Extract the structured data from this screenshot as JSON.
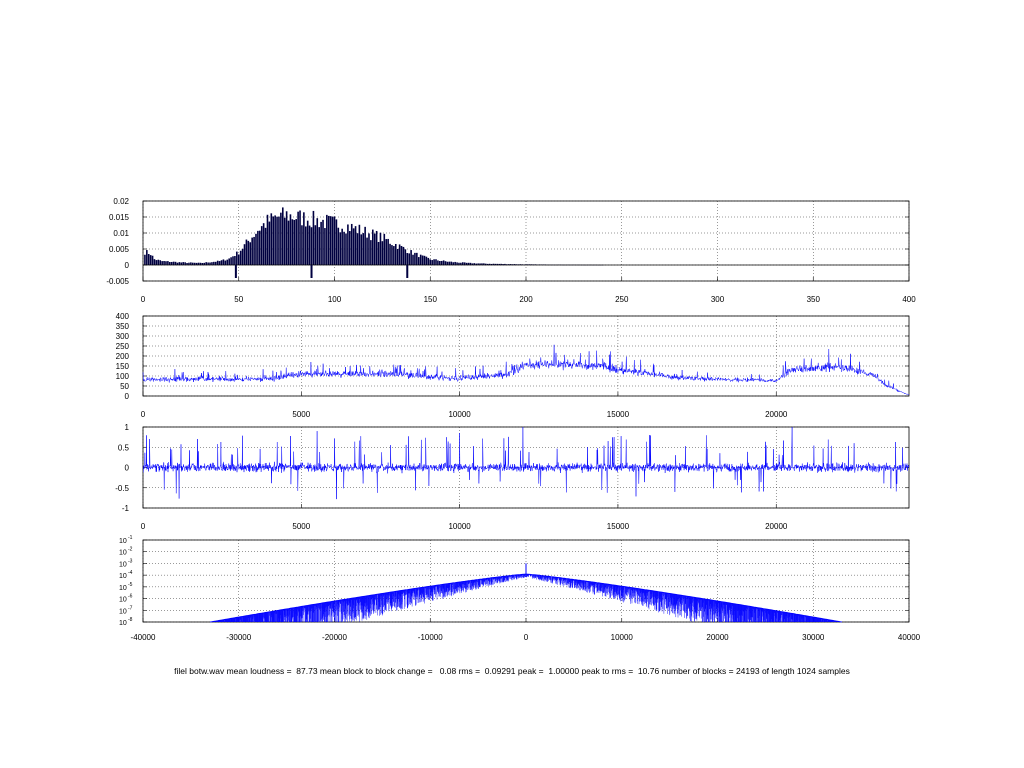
{
  "caption": "filel botw.wav mean loudness =  87.73 mean block to block change =   0.08 rms =  0.09291 peak =  1.00000 peak to rms =  10.76 number of blocks = 24193 of length 1024 samples",
  "colors": {
    "histogram": "#000040",
    "trace": "#0000ff",
    "axes": "#000000",
    "grid": "#000000"
  },
  "chart_data": [
    {
      "type": "bar",
      "panel": "loudness-histogram",
      "xlim": [
        0,
        400
      ],
      "ylim": [
        -0.005,
        0.02
      ],
      "xticks": [
        "0",
        "50",
        "100",
        "150",
        "200",
        "250",
        "300",
        "350",
        "400"
      ],
      "yticks": [
        "-0.005",
        "0",
        "0.005",
        "0.01",
        "0.015",
        "0.02"
      ],
      "grid": true,
      "bins": [
        [
          2,
          0.004
        ],
        [
          4,
          0.0035
        ],
        [
          6,
          0.0018
        ],
        [
          10,
          0.0012
        ],
        [
          20,
          0.0008
        ],
        [
          30,
          0.0006
        ],
        [
          40,
          0.0012
        ],
        [
          45,
          0.002
        ],
        [
          50,
          0.004
        ],
        [
          55,
          0.0075
        ],
        [
          60,
          0.011
        ],
        [
          65,
          0.0135
        ],
        [
          70,
          0.015
        ],
        [
          75,
          0.0155
        ],
        [
          80,
          0.015
        ],
        [
          85,
          0.0145
        ],
        [
          90,
          0.014
        ],
        [
          95,
          0.0135
        ],
        [
          100,
          0.013
        ],
        [
          105,
          0.0125
        ],
        [
          110,
          0.0115
        ],
        [
          115,
          0.0105
        ],
        [
          120,
          0.0095
        ],
        [
          125,
          0.0085
        ],
        [
          130,
          0.007
        ],
        [
          135,
          0.0055
        ],
        [
          140,
          0.004
        ],
        [
          145,
          0.0028
        ],
        [
          150,
          0.0018
        ],
        [
          160,
          0.001
        ],
        [
          170,
          0.0006
        ],
        [
          180,
          0.0004
        ],
        [
          190,
          0.0003
        ],
        [
          200,
          0.0002
        ],
        [
          220,
          0.0001
        ],
        [
          240,
          5e-05
        ]
      ],
      "markers": [
        48.5,
        88,
        138
      ]
    },
    {
      "type": "line",
      "panel": "block-loudness",
      "xlim": [
        0,
        24193
      ],
      "ylim": [
        0,
        400
      ],
      "xticks": [
        "0",
        "5000",
        "10000",
        "15000",
        "20000"
      ],
      "yticks": [
        "0",
        "50",
        "100",
        "150",
        "200",
        "250",
        "300",
        "350",
        "400"
      ],
      "grid": true,
      "envelope": [
        [
          0,
          80,
          40
        ],
        [
          2000,
          85,
          40
        ],
        [
          4000,
          85,
          40
        ],
        [
          5000,
          110,
          45
        ],
        [
          8000,
          110,
          45
        ],
        [
          10000,
          85,
          40
        ],
        [
          11500,
          105,
          45
        ],
        [
          12000,
          150,
          60
        ],
        [
          13000,
          160,
          65
        ],
        [
          14500,
          150,
          60
        ],
        [
          15500,
          120,
          50
        ],
        [
          17000,
          90,
          35
        ],
        [
          20000,
          75,
          25
        ],
        [
          20500,
          135,
          60
        ],
        [
          22000,
          145,
          60
        ],
        [
          23000,
          110,
          45
        ],
        [
          23500,
          50,
          25
        ],
        [
          24193,
          5,
          5
        ]
      ]
    },
    {
      "type": "line",
      "panel": "block-change",
      "xlim": [
        0,
        24193
      ],
      "ylim": [
        -1,
        1
      ],
      "xticks": [
        "0",
        "5000",
        "10000",
        "15000",
        "20000"
      ],
      "yticks": [
        "-1",
        "-0.5",
        "0",
        "0.5",
        "1"
      ],
      "grid": true,
      "amplitude": 0.35,
      "peaks": [
        [
          12000,
          1
        ],
        [
          20500,
          1
        ],
        [
          5500,
          0.9
        ],
        [
          10000,
          0.85
        ],
        [
          16000,
          0.8
        ]
      ]
    },
    {
      "type": "line",
      "panel": "autocorrelation-log",
      "xlim": [
        -40000,
        40000
      ],
      "ylog": true,
      "ylim_exp": [
        -8,
        -1
      ],
      "xticks": [
        "-40000",
        "-30000",
        "-20000",
        "-10000",
        "0",
        "10000",
        "20000",
        "30000",
        "40000"
      ],
      "ytick_exps": [
        "-1",
        "-2",
        "-3",
        "-4",
        "-5",
        "-6",
        "-7",
        "-8"
      ],
      "grid": true,
      "center_log": -3.9,
      "spike_log": -3.0,
      "support": [
        -33000,
        33000
      ]
    }
  ]
}
